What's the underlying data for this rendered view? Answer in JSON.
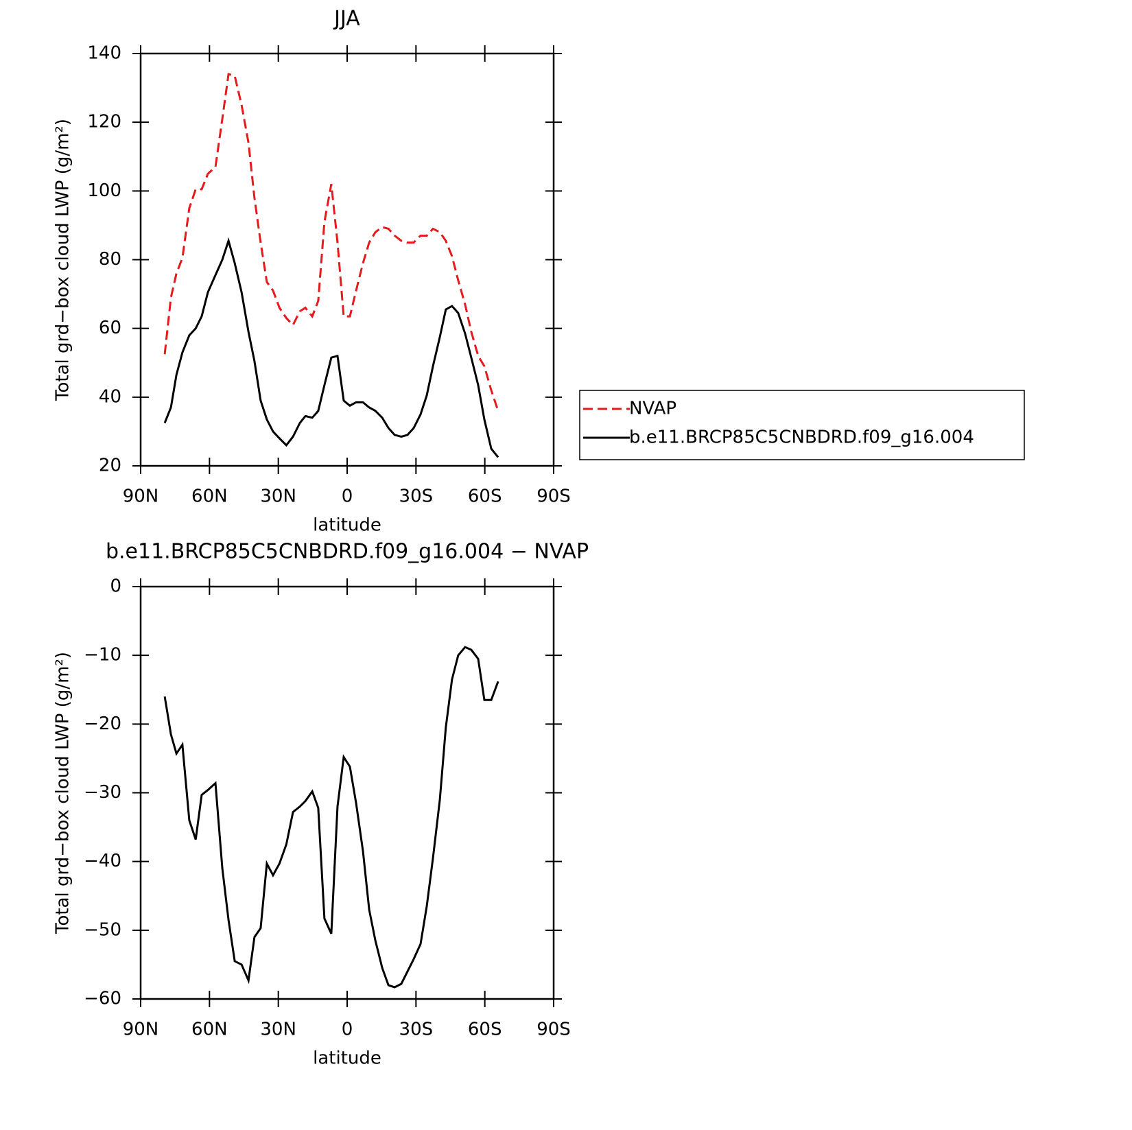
{
  "chart_data": [
    {
      "type": "line",
      "title": "JJA",
      "xlabel": "latitude",
      "ylabel": "Total grd−box cloud LWP (g/m²)",
      "x": [
        79.5,
        76.8,
        74.4,
        71.8,
        68.8,
        66,
        63.4,
        60.7,
        57.4,
        54.4,
        51.7,
        49,
        46,
        43,
        40.4,
        37.7,
        35,
        32.3,
        29.5,
        26.5,
        23.6,
        20.6,
        18.2,
        15.2,
        12.6,
        9.9,
        6.9,
        4.2,
        1.5,
        -1.2,
        -3.9,
        -6.9,
        -9.6,
        -12.3,
        -15.3,
        -18,
        -20.7,
        -23.6,
        -26.3,
        -29,
        -32,
        -34.7,
        -37.4,
        -40.4,
        -43,
        -45.7,
        -48.4,
        -51.4,
        -54.1,
        -57.1,
        -59.8,
        -62.8,
        -65.8
      ],
      "xlim": [
        90,
        -90
      ],
      "xticks": [
        {
          "value": 90,
          "label": "90N"
        },
        {
          "value": 60,
          "label": "60N"
        },
        {
          "value": 30,
          "label": "30N"
        },
        0,
        {
          "value": -30,
          "label": "30S"
        },
        {
          "value": -60,
          "label": "60S"
        },
        {
          "value": -90,
          "label": "90S"
        }
      ],
      "ylim": [
        20,
        140
      ],
      "yticks": [
        20,
        40,
        60,
        80,
        100,
        120,
        140
      ],
      "legend": "right",
      "series": [
        {
          "name": "NVAP",
          "color": "#e41a1c",
          "dash": true,
          "values": [
            52.5,
            69,
            76,
            80.5,
            95,
            100.5,
            100.5,
            105,
            107,
            121,
            134,
            133.5,
            125,
            114,
            98,
            85,
            73.5,
            71,
            66,
            63,
            61,
            65,
            66,
            63.5,
            68,
            91,
            102,
            85,
            63.5,
            63.5,
            71,
            79,
            85,
            88,
            89.5,
            89,
            87,
            85.5,
            85,
            85,
            87,
            87,
            89,
            88,
            85.5,
            81,
            74,
            67,
            59,
            52,
            49,
            42,
            36
          ]
        },
        {
          "name": "b.e11.BRCP85C5CNBDRD.f09_g16.004",
          "color": "#000000",
          "dash": false,
          "values": [
            32.5,
            37,
            46.5,
            53,
            58,
            60,
            63.5,
            70.5,
            75.5,
            80,
            85.5,
            79,
            70.5,
            59,
            50.5,
            39,
            33.5,
            30,
            28,
            26,
            28.5,
            32.5,
            34.5,
            34,
            36,
            43.5,
            51.5,
            52,
            39,
            37.5,
            38.5,
            38.5,
            37,
            36,
            34,
            31,
            29,
            28.5,
            29,
            31,
            35,
            40.5,
            49,
            57.5,
            65.5,
            66.5,
            64.5,
            58.5,
            51.5,
            43.5,
            33.5,
            25,
            22.5
          ]
        }
      ]
    },
    {
      "type": "line",
      "title": "b.e11.BRCP85C5CNBDRD.f09_g16.004 − NVAP",
      "xlabel": "latitude",
      "ylabel": "Total grd−box cloud LWP (g/m²)",
      "x": [
        79.5,
        76.8,
        74.4,
        71.8,
        68.8,
        66,
        63.4,
        60.7,
        57.4,
        54.4,
        51.7,
        49,
        46,
        43,
        40.4,
        37.7,
        35,
        32.3,
        29.5,
        26.5,
        23.6,
        20.6,
        18.2,
        15.2,
        12.6,
        9.9,
        6.9,
        4.2,
        1.5,
        -1.2,
        -3.9,
        -6.9,
        -9.6,
        -12.3,
        -15.3,
        -18,
        -20.7,
        -23.6,
        -26.3,
        -29,
        -32,
        -34.7,
        -37.4,
        -40.4,
        -43,
        -45.7,
        -48.4,
        -51.4,
        -54.1,
        -57.1,
        -59.8,
        -62.8,
        -65.8
      ],
      "xlim": [
        90,
        -90
      ],
      "xticks": [
        {
          "value": 90,
          "label": "90N"
        },
        {
          "value": 60,
          "label": "60N"
        },
        {
          "value": 30,
          "label": "30N"
        },
        0,
        {
          "value": -30,
          "label": "30S"
        },
        {
          "value": -60,
          "label": "60S"
        },
        {
          "value": -90,
          "label": "90S"
        }
      ],
      "ylim": [
        -60,
        0
      ],
      "yticks": [
        {
          "value": -60,
          "label": "−60"
        },
        {
          "value": -50,
          "label": "−50"
        },
        {
          "value": -40,
          "label": "−40"
        },
        {
          "value": -30,
          "label": "−30"
        },
        {
          "value": -20,
          "label": "−20"
        },
        {
          "value": -10,
          "label": "−10"
        },
        0
      ],
      "series": [
        {
          "color": "#000000",
          "dash": false,
          "values": [
            -16,
            -21.5,
            -24.3,
            -23,
            -34,
            -36.8,
            -30.3,
            -29.6,
            -28.6,
            -41,
            -48.5,
            -54.5,
            -55,
            -57.3,
            -51,
            -49.7,
            -40.3,
            -42,
            -40.3,
            -37.5,
            -32.8,
            -32,
            -31.2,
            -29.8,
            -32.2,
            -48.3,
            -50.5,
            -32,
            -24.8,
            -26.2,
            -31.5,
            -38.5,
            -47,
            -51.5,
            -55.5,
            -58,
            -58.3,
            -57.8,
            -56,
            -54.2,
            -52,
            -46.5,
            -39.5,
            -31,
            -20.5,
            -13.5,
            -10,
            -8.8,
            -9.2,
            -10.5,
            -16.5,
            -16.5,
            -13.8
          ]
        }
      ]
    }
  ]
}
